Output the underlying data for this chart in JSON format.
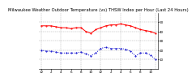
{
  "title": "Milwaukee Weather Outdoor Temperature (vs) THSW Index per Hour (Last 24 Hours)",
  "background_color": "#ffffff",
  "plot_bg_color": "#ffffff",
  "grid_color": "#888888",
  "temp_color": "#ff0000",
  "thsw_color": "#0000cc",
  "hours": [
    0,
    1,
    2,
    3,
    4,
    5,
    6,
    7,
    8,
    9,
    10,
    11,
    12,
    13,
    14,
    15,
    16,
    17,
    18,
    19,
    20,
    21,
    22,
    23
  ],
  "temp": [
    46,
    46,
    46,
    45,
    44,
    44,
    43,
    44,
    44,
    40,
    38,
    42,
    44,
    46,
    47,
    47,
    48,
    47,
    46,
    44,
    42,
    41,
    40,
    38
  ],
  "thsw": [
    20,
    19,
    19,
    18,
    17,
    17,
    17,
    17,
    18,
    16,
    14,
    17,
    22,
    23,
    22,
    22,
    22,
    21,
    19,
    14,
    17,
    17,
    15,
    10
  ],
  "ylim_min": 0,
  "ylim_max": 60,
  "ytick_positions": [
    10,
    20,
    30,
    40,
    50
  ],
  "ytick_labels": [
    "10",
    "20",
    "30",
    "40",
    "50"
  ],
  "title_fontsize": 3.8,
  "tick_fontsize": 3.0,
  "linewidth": 0.7,
  "marker_size": 1.0,
  "vline_positions": [
    0,
    4,
    8,
    12,
    16,
    20,
    23
  ],
  "xtick_positions": [
    0,
    2,
    4,
    6,
    8,
    10,
    12,
    14,
    16,
    18,
    20,
    22
  ],
  "xtick_labels": [
    "12",
    "2",
    "4",
    "6",
    "8",
    "10",
    "12",
    "2",
    "4",
    "6",
    "8",
    "10"
  ]
}
